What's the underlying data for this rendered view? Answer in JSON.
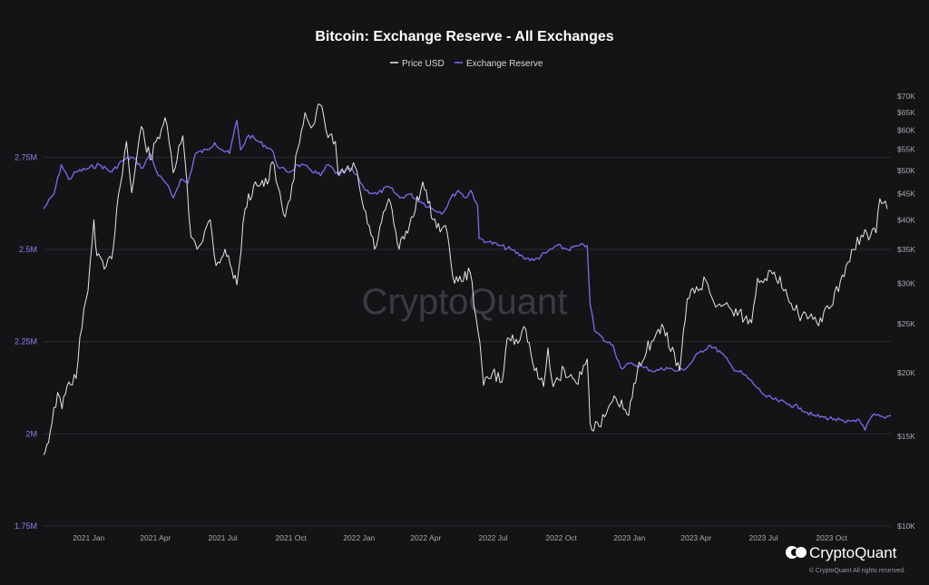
{
  "chart_data": {
    "type": "line",
    "title": "Bitcoin: Exchange Reserve - All Exchanges",
    "watermark": "CryptoQuant",
    "brand": {
      "name": "CryptoQuant",
      "copyright": "© CryptoQuant All rights reserved."
    },
    "legend": {
      "placement": "top-center",
      "entries": [
        "Price USD",
        "Exchange Reserve"
      ]
    },
    "grid": true,
    "colors": {
      "price": "#e6e6e6",
      "reserve": "#7b6cf0",
      "background": "#141417"
    },
    "x_axis": {
      "range": [
        "2020-11-01",
        "2023-12-20"
      ],
      "ticks": [
        {
          "label": "2021 Jan",
          "date": "2021-01-01"
        },
        {
          "label": "2021 Apr",
          "date": "2021-04-01"
        },
        {
          "label": "2021 Jul",
          "date": "2021-07-01"
        },
        {
          "label": "2021 Oct",
          "date": "2021-10-01"
        },
        {
          "label": "2022 Jan",
          "date": "2022-01-01"
        },
        {
          "label": "2022 Apr",
          "date": "2022-04-01"
        },
        {
          "label": "2022 Jul",
          "date": "2022-07-01"
        },
        {
          "label": "2022 Oct",
          "date": "2022-10-01"
        },
        {
          "label": "2023 Jan",
          "date": "2023-01-01"
        },
        {
          "label": "2023 Apr",
          "date": "2023-04-01"
        },
        {
          "label": "2023 Jul",
          "date": "2023-07-01"
        },
        {
          "label": "2023 Oct",
          "date": "2023-10-01"
        }
      ]
    },
    "y_left": {
      "range": [
        1750000,
        2950000
      ],
      "ticks": [
        {
          "label": "2.75M",
          "value": 2750000
        },
        {
          "label": "2.5M",
          "value": 2500000
        },
        {
          "label": "2.25M",
          "value": 2250000
        },
        {
          "label": "2M",
          "value": 2000000
        },
        {
          "label": "1.75M",
          "value": 1750000
        }
      ]
    },
    "y_right": {
      "scale": "log",
      "range": [
        10000,
        70000
      ],
      "ticks": [
        {
          "label": "$70K",
          "value": 70000
        },
        {
          "label": "$65K",
          "value": 65000
        },
        {
          "label": "$60K",
          "value": 60000
        },
        {
          "label": "$55K",
          "value": 55000
        },
        {
          "label": "$50K",
          "value": 50000
        },
        {
          "label": "$45K",
          "value": 45000
        },
        {
          "label": "$40K",
          "value": 40000
        },
        {
          "label": "$35K",
          "value": 35000
        },
        {
          "label": "$30K",
          "value": 30000
        },
        {
          "label": "$25K",
          "value": 25000
        },
        {
          "label": "$20K",
          "value": 20000
        },
        {
          "label": "$15K",
          "value": 15000
        },
        {
          "label": "$10K",
          "value": 10000
        }
      ]
    },
    "series": [
      {
        "name": "Price USD",
        "axis": "right",
        "points": [
          [
            "2020-11-01",
            13800
          ],
          [
            "2020-11-10",
            15300
          ],
          [
            "2020-11-20",
            18300
          ],
          [
            "2020-11-26",
            17000
          ],
          [
            "2020-12-05",
            19200
          ],
          [
            "2020-12-15",
            19500
          ],
          [
            "2020-12-20",
            23500
          ],
          [
            "2020-12-31",
            29000
          ],
          [
            "2021-01-08",
            40000
          ],
          [
            "2021-01-12",
            34000
          ],
          [
            "2021-01-22",
            32000
          ],
          [
            "2021-02-01",
            33500
          ],
          [
            "2021-02-10",
            44800
          ],
          [
            "2021-02-21",
            57000
          ],
          [
            "2021-02-28",
            45200
          ],
          [
            "2021-03-13",
            61000
          ],
          [
            "2021-03-25",
            52500
          ],
          [
            "2021-04-14",
            63500
          ],
          [
            "2021-04-25",
            49500
          ],
          [
            "2021-05-08",
            58500
          ],
          [
            "2021-05-19",
            37000
          ],
          [
            "2021-05-30",
            35500
          ],
          [
            "2021-06-14",
            40000
          ],
          [
            "2021-06-22",
            32500
          ],
          [
            "2021-07-04",
            35000
          ],
          [
            "2021-07-20",
            29800
          ],
          [
            "2021-07-31",
            42000
          ],
          [
            "2021-08-14",
            47500
          ],
          [
            "2021-08-30",
            47000
          ],
          [
            "2021-09-06",
            52000
          ],
          [
            "2021-09-21",
            41000
          ],
          [
            "2021-09-30",
            43800
          ],
          [
            "2021-10-10",
            55000
          ],
          [
            "2021-10-20",
            65000
          ],
          [
            "2021-10-31",
            61300
          ],
          [
            "2021-11-09",
            67500
          ],
          [
            "2021-11-20",
            58000
          ],
          [
            "2021-11-30",
            57000
          ],
          [
            "2021-12-04",
            49000
          ],
          [
            "2021-12-27",
            50700
          ],
          [
            "2022-01-05",
            43500
          ],
          [
            "2022-01-22",
            35000
          ],
          [
            "2022-02-10",
            44000
          ],
          [
            "2022-02-24",
            35000
          ],
          [
            "2022-03-10",
            39000
          ],
          [
            "2022-03-28",
            47500
          ],
          [
            "2022-04-11",
            40000
          ],
          [
            "2022-04-30",
            37700
          ],
          [
            "2022-05-10",
            30000
          ],
          [
            "2022-05-31",
            31500
          ],
          [
            "2022-06-13",
            23000
          ],
          [
            "2022-06-18",
            18900
          ],
          [
            "2022-06-30",
            20000
          ],
          [
            "2022-07-13",
            19200
          ],
          [
            "2022-07-20",
            23400
          ],
          [
            "2022-08-01",
            23300
          ],
          [
            "2022-08-14",
            24400
          ],
          [
            "2022-08-26",
            20200
          ],
          [
            "2022-09-07",
            18800
          ],
          [
            "2022-09-13",
            22400
          ],
          [
            "2022-09-20",
            18800
          ],
          [
            "2022-10-05",
            20300
          ],
          [
            "2022-10-21",
            19100
          ],
          [
            "2022-11-05",
            21300
          ],
          [
            "2022-11-09",
            15900
          ],
          [
            "2022-11-21",
            15700
          ],
          [
            "2022-12-14",
            17800
          ],
          [
            "2022-12-31",
            16500
          ],
          [
            "2023-01-14",
            21000
          ],
          [
            "2023-01-31",
            23100
          ],
          [
            "2023-02-16",
            24600
          ],
          [
            "2023-03-10",
            20200
          ],
          [
            "2023-03-20",
            28000
          ],
          [
            "2023-04-14",
            30400
          ],
          [
            "2023-04-25",
            27500
          ],
          [
            "2023-05-15",
            27000
          ],
          [
            "2023-06-15",
            25100
          ],
          [
            "2023-06-23",
            30700
          ],
          [
            "2023-07-13",
            31300
          ],
          [
            "2023-07-31",
            29200
          ],
          [
            "2023-08-17",
            26100
          ],
          [
            "2023-09-11",
            25100
          ],
          [
            "2023-09-30",
            27000
          ],
          [
            "2023-10-23",
            33000
          ],
          [
            "2023-11-10",
            37300
          ],
          [
            "2023-11-30",
            37700
          ],
          [
            "2023-12-05",
            44000
          ],
          [
            "2023-12-15",
            42000
          ]
        ]
      },
      {
        "name": "Exchange Reserve",
        "axis": "left",
        "points": [
          [
            "2020-11-01",
            2610000
          ],
          [
            "2020-11-15",
            2650000
          ],
          [
            "2020-11-25",
            2730000
          ],
          [
            "2020-12-05",
            2690000
          ],
          [
            "2020-12-15",
            2710000
          ],
          [
            "2021-01-01",
            2720000
          ],
          [
            "2021-01-15",
            2730000
          ],
          [
            "2021-02-01",
            2710000
          ],
          [
            "2021-02-15",
            2740000
          ],
          [
            "2021-03-01",
            2750000
          ],
          [
            "2021-03-15",
            2720000
          ],
          [
            "2021-03-25",
            2760000
          ],
          [
            "2021-04-05",
            2700000
          ],
          [
            "2021-04-15",
            2680000
          ],
          [
            "2021-04-25",
            2640000
          ],
          [
            "2021-05-05",
            2690000
          ],
          [
            "2021-05-15",
            2680000
          ],
          [
            "2021-05-25",
            2760000
          ],
          [
            "2021-06-10",
            2770000
          ],
          [
            "2021-06-20",
            2790000
          ],
          [
            "2021-06-30",
            2770000
          ],
          [
            "2021-07-10",
            2760000
          ],
          [
            "2021-07-20",
            2850000
          ],
          [
            "2021-07-25",
            2770000
          ],
          [
            "2021-08-05",
            2810000
          ],
          [
            "2021-08-20",
            2790000
          ],
          [
            "2021-09-05",
            2770000
          ],
          [
            "2021-09-15",
            2720000
          ],
          [
            "2021-09-30",
            2710000
          ],
          [
            "2021-10-10",
            2730000
          ],
          [
            "2021-10-25",
            2720000
          ],
          [
            "2021-11-10",
            2700000
          ],
          [
            "2021-11-20",
            2730000
          ],
          [
            "2021-12-05",
            2700000
          ],
          [
            "2021-12-20",
            2720000
          ],
          [
            "2022-01-01",
            2690000
          ],
          [
            "2022-01-10",
            2660000
          ],
          [
            "2022-01-25",
            2650000
          ],
          [
            "2022-02-10",
            2670000
          ],
          [
            "2022-02-25",
            2640000
          ],
          [
            "2022-03-10",
            2650000
          ],
          [
            "2022-03-25",
            2630000
          ],
          [
            "2022-04-10",
            2610000
          ],
          [
            "2022-04-25",
            2600000
          ],
          [
            "2022-05-05",
            2640000
          ],
          [
            "2022-05-15",
            2660000
          ],
          [
            "2022-05-25",
            2640000
          ],
          [
            "2022-06-01",
            2660000
          ],
          [
            "2022-06-10",
            2620000
          ],
          [
            "2022-06-12",
            2530000
          ],
          [
            "2022-06-25",
            2520000
          ],
          [
            "2022-07-10",
            2510000
          ],
          [
            "2022-07-25",
            2500000
          ],
          [
            "2022-08-10",
            2480000
          ],
          [
            "2022-08-25",
            2470000
          ],
          [
            "2022-09-10",
            2490000
          ],
          [
            "2022-09-25",
            2510000
          ],
          [
            "2022-10-10",
            2500000
          ],
          [
            "2022-10-25",
            2510000
          ],
          [
            "2022-11-05",
            2510000
          ],
          [
            "2022-11-09",
            2350000
          ],
          [
            "2022-11-15",
            2280000
          ],
          [
            "2022-11-30",
            2250000
          ],
          [
            "2022-12-10",
            2240000
          ],
          [
            "2022-12-20",
            2180000
          ],
          [
            "2023-01-05",
            2190000
          ],
          [
            "2023-01-20",
            2180000
          ],
          [
            "2023-02-05",
            2170000
          ],
          [
            "2023-02-20",
            2180000
          ],
          [
            "2023-03-05",
            2170000
          ],
          [
            "2023-03-20",
            2180000
          ],
          [
            "2023-04-05",
            2220000
          ],
          [
            "2023-04-20",
            2240000
          ],
          [
            "2023-05-05",
            2220000
          ],
          [
            "2023-05-20",
            2180000
          ],
          [
            "2023-06-05",
            2160000
          ],
          [
            "2023-06-20",
            2130000
          ],
          [
            "2023-07-05",
            2100000
          ],
          [
            "2023-07-20",
            2090000
          ],
          [
            "2023-08-05",
            2080000
          ],
          [
            "2023-08-20",
            2070000
          ],
          [
            "2023-09-05",
            2050000
          ],
          [
            "2023-09-20",
            2045000
          ],
          [
            "2023-10-05",
            2040000
          ],
          [
            "2023-10-20",
            2030000
          ],
          [
            "2023-11-05",
            2040000
          ],
          [
            "2023-11-15",
            2010000
          ],
          [
            "2023-11-25",
            2050000
          ],
          [
            "2023-12-10",
            2045000
          ],
          [
            "2023-12-20",
            2050000
          ]
        ]
      }
    ]
  }
}
